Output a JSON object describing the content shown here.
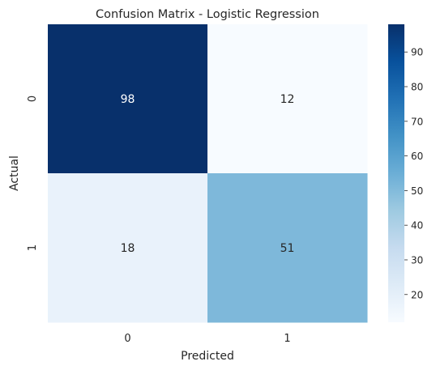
{
  "chart_data": {
    "type": "heatmap",
    "title": "Confusion Matrix - Logistic Regression",
    "xlabel": "Predicted",
    "ylabel": "Actual",
    "x_categories": [
      "0",
      "1"
    ],
    "y_categories": [
      "0",
      "1"
    ],
    "values": [
      [
        98,
        12
      ],
      [
        18,
        51
      ]
    ],
    "colormap": "Blues",
    "colorbar": {
      "range": [
        12,
        98
      ],
      "ticks": [
        20,
        30,
        40,
        50,
        60,
        70,
        80,
        90
      ],
      "tick_labels": [
        "20",
        "30",
        "40",
        "50",
        "60",
        "70",
        "80",
        "90"
      ]
    },
    "annotations": true,
    "grid": false
  }
}
